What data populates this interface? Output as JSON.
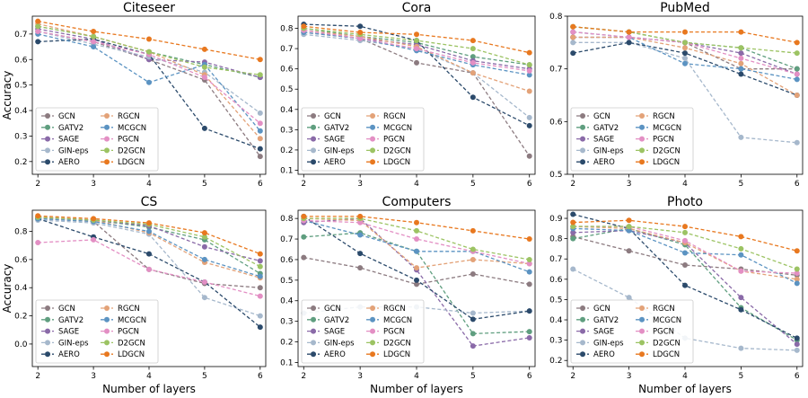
{
  "figure": {
    "xlabel": "Number of layers",
    "ylabel": "Accuracy"
  },
  "series_styles": [
    {
      "name": "GCN",
      "color": "#8c7b80"
    },
    {
      "name": "GATV2",
      "color": "#5f9e7f"
    },
    {
      "name": "SAGE",
      "color": "#8a6aa8"
    },
    {
      "name": "GIN-eps",
      "color": "#a6b8cc"
    },
    {
      "name": "AERO",
      "color": "#2b4a6b"
    },
    {
      "name": "RGCN",
      "color": "#e3a278"
    },
    {
      "name": "MCGCN",
      "color": "#5b93c2"
    },
    {
      "name": "PGCN",
      "color": "#e38fc4"
    },
    {
      "name": "D2GCN",
      "color": "#9cc363"
    },
    {
      "name": "LDGCN",
      "color": "#e8781f"
    }
  ],
  "chart_data": [
    {
      "type": "line",
      "title": "Citeseer",
      "x": [
        2,
        3,
        4,
        5,
        6
      ],
      "ylim": [
        0.15,
        0.77
      ],
      "yticks": [
        0.2,
        0.3,
        0.4,
        0.5,
        0.6,
        0.7
      ],
      "yticklabels": [
        "0.2",
        "0.3",
        "0.4",
        "0.5",
        "0.6",
        "0.7"
      ],
      "series": [
        {
          "name": "GCN",
          "values": [
            0.71,
            0.67,
            0.6,
            0.52,
            0.22
          ]
        },
        {
          "name": "GATV2",
          "values": [
            0.73,
            0.69,
            0.63,
            0.58,
            0.53
          ]
        },
        {
          "name": "SAGE",
          "values": [
            0.72,
            0.68,
            0.6,
            0.59,
            0.53
          ]
        },
        {
          "name": "GIN-eps",
          "values": [
            0.71,
            0.66,
            0.61,
            0.55,
            0.39
          ]
        },
        {
          "name": "AERO",
          "values": [
            0.67,
            0.68,
            0.62,
            0.33,
            0.25
          ]
        },
        {
          "name": "RGCN",
          "values": [
            0.74,
            0.69,
            0.63,
            0.54,
            0.29
          ]
        },
        {
          "name": "MCGCN",
          "values": [
            0.7,
            0.65,
            0.51,
            0.58,
            0.32
          ]
        },
        {
          "name": "PGCN",
          "values": [
            0.71,
            0.67,
            0.62,
            0.53,
            0.35
          ]
        },
        {
          "name": "D2GCN",
          "values": [
            0.73,
            0.69,
            0.63,
            0.57,
            0.54
          ]
        },
        {
          "name": "LDGCN",
          "values": [
            0.75,
            0.71,
            0.68,
            0.64,
            0.6
          ]
        }
      ],
      "xticklabels": [
        "2",
        "3",
        "4",
        "5",
        "6"
      ],
      "xlabel": "",
      "ylabel": "Accuracy"
    },
    {
      "type": "line",
      "title": "Cora",
      "x": [
        2,
        3,
        4,
        5,
        6
      ],
      "ylim": [
        0.08,
        0.86
      ],
      "yticks": [
        0.1,
        0.2,
        0.3,
        0.4,
        0.5,
        0.6,
        0.7,
        0.8
      ],
      "yticklabels": [
        "0.1",
        "0.2",
        "0.3",
        "0.4",
        "0.5",
        "0.6",
        "0.7",
        "0.8"
      ],
      "series": [
        {
          "name": "GCN",
          "values": [
            0.78,
            0.75,
            0.63,
            0.58,
            0.17
          ]
        },
        {
          "name": "GATV2",
          "values": [
            0.8,
            0.76,
            0.73,
            0.66,
            0.62
          ]
        },
        {
          "name": "SAGE",
          "values": [
            0.79,
            0.75,
            0.72,
            0.64,
            0.6
          ]
        },
        {
          "name": "GIN-eps",
          "values": [
            0.77,
            0.74,
            0.7,
            0.58,
            0.36
          ]
        },
        {
          "name": "AERO",
          "values": [
            0.82,
            0.81,
            0.74,
            0.46,
            0.32
          ]
        },
        {
          "name": "RGCN",
          "values": [
            0.79,
            0.76,
            0.71,
            0.58,
            0.49
          ]
        },
        {
          "name": "MCGCN",
          "values": [
            0.78,
            0.75,
            0.69,
            0.62,
            0.57
          ]
        },
        {
          "name": "PGCN",
          "values": [
            0.79,
            0.75,
            0.7,
            0.63,
            0.59
          ]
        },
        {
          "name": "D2GCN",
          "values": [
            0.8,
            0.77,
            0.74,
            0.7,
            0.62
          ]
        },
        {
          "name": "LDGCN",
          "values": [
            0.81,
            0.78,
            0.77,
            0.74,
            0.68
          ]
        }
      ],
      "xticklabels": [
        "2",
        "3",
        "4",
        "5",
        "6"
      ],
      "xlabel": "",
      "ylabel": ""
    },
    {
      "type": "line",
      "title": "PubMed",
      "x": [
        2,
        3,
        4,
        5,
        6
      ],
      "ylim": [
        0.5,
        0.8
      ],
      "yticks": [
        0.5,
        0.6,
        0.7,
        0.8
      ],
      "yticklabels": [
        "0.5",
        "0.6",
        "0.7",
        "0.8"
      ],
      "series": [
        {
          "name": "GCN",
          "values": [
            0.76,
            0.76,
            0.75,
            0.7,
            0.7
          ]
        },
        {
          "name": "GATV2",
          "values": [
            0.78,
            0.77,
            0.75,
            0.74,
            0.7
          ]
        },
        {
          "name": "SAGE",
          "values": [
            0.76,
            0.76,
            0.75,
            0.73,
            0.69
          ]
        },
        {
          "name": "GIN-eps",
          "values": [
            0.75,
            0.75,
            0.72,
            0.57,
            0.56
          ]
        },
        {
          "name": "AERO",
          "values": [
            0.73,
            0.75,
            0.73,
            0.69,
            0.65
          ]
        },
        {
          "name": "RGCN",
          "values": [
            0.76,
            0.76,
            0.74,
            0.71,
            0.65
          ]
        },
        {
          "name": "MCGCN",
          "values": [
            0.77,
            0.76,
            0.71,
            0.7,
            0.68
          ]
        },
        {
          "name": "PGCN",
          "values": [
            0.77,
            0.76,
            0.75,
            0.72,
            0.69
          ]
        },
        {
          "name": "D2GCN",
          "values": [
            0.78,
            0.77,
            0.75,
            0.74,
            0.73
          ]
        },
        {
          "name": "LDGCN",
          "values": [
            0.78,
            0.77,
            0.77,
            0.77,
            0.75
          ]
        }
      ],
      "xticklabels": [
        "2",
        "3",
        "4",
        "5",
        "6"
      ],
      "xlabel": "",
      "ylabel": ""
    },
    {
      "type": "line",
      "title": "CS",
      "x": [
        2,
        3,
        4,
        5,
        6
      ],
      "ylim": [
        -0.16,
        0.95
      ],
      "yticks": [
        0.0,
        0.2,
        0.4,
        0.6,
        0.8
      ],
      "yticklabels": [
        "0.0",
        "0.2",
        "0.4",
        "0.6",
        "0.8"
      ],
      "series": [
        {
          "name": "GCN",
          "values": [
            0.89,
            0.87,
            0.53,
            0.43,
            0.4
          ]
        },
        {
          "name": "GATV2",
          "values": [
            0.9,
            0.88,
            0.83,
            0.74,
            0.5
          ]
        },
        {
          "name": "SAGE",
          "values": [
            0.9,
            0.88,
            0.84,
            0.69,
            0.59
          ]
        },
        {
          "name": "GIN-eps",
          "values": [
            0.88,
            0.86,
            0.78,
            0.33,
            0.2
          ]
        },
        {
          "name": "AERO",
          "values": [
            0.89,
            0.76,
            0.64,
            0.44,
            0.12
          ]
        },
        {
          "name": "RGCN",
          "values": [
            0.9,
            0.88,
            0.79,
            0.58,
            0.47
          ]
        },
        {
          "name": "MCGCN",
          "values": [
            0.89,
            0.87,
            0.8,
            0.6,
            0.48
          ]
        },
        {
          "name": "PGCN",
          "values": [
            0.72,
            0.74,
            0.53,
            0.44,
            0.34
          ]
        },
        {
          "name": "D2GCN",
          "values": [
            0.9,
            0.88,
            0.85,
            0.76,
            0.55
          ]
        },
        {
          "name": "LDGCN",
          "values": [
            0.91,
            0.89,
            0.86,
            0.79,
            0.64
          ]
        }
      ],
      "xticklabels": [
        "2",
        "3",
        "4",
        "5",
        "6"
      ],
      "xlabel": "Number of layers",
      "ylabel": "Accuracy"
    },
    {
      "type": "line",
      "title": "Computers",
      "x": [
        2,
        3,
        4,
        5,
        6
      ],
      "ylim": [
        0.08,
        0.84
      ],
      "yticks": [
        0.1,
        0.2,
        0.3,
        0.4,
        0.5,
        0.6,
        0.7,
        0.8
      ],
      "yticklabels": [
        "0.1",
        "0.2",
        "0.3",
        "0.4",
        "0.5",
        "0.6",
        "0.7",
        "0.8"
      ],
      "series": [
        {
          "name": "GCN",
          "values": [
            0.61,
            0.56,
            0.48,
            0.53,
            0.48
          ]
        },
        {
          "name": "GATV2",
          "values": [
            0.71,
            0.73,
            0.64,
            0.24,
            0.25
          ]
        },
        {
          "name": "SAGE",
          "values": [
            0.78,
            0.8,
            0.55,
            0.18,
            0.22
          ]
        },
        {
          "name": "GIN-eps",
          "values": [
            0.34,
            0.37,
            0.37,
            0.34,
            0.35
          ]
        },
        {
          "name": "AERO",
          "values": [
            0.81,
            0.63,
            0.5,
            0.31,
            0.35
          ]
        },
        {
          "name": "RGCN",
          "values": [
            0.8,
            0.79,
            0.56,
            0.6,
            0.58
          ]
        },
        {
          "name": "MCGCN",
          "values": [
            0.79,
            0.72,
            0.64,
            0.64,
            0.54
          ]
        },
        {
          "name": "PGCN",
          "values": [
            0.79,
            0.78,
            0.7,
            0.64,
            0.58
          ]
        },
        {
          "name": "D2GCN",
          "values": [
            0.8,
            0.8,
            0.74,
            0.65,
            0.6
          ]
        },
        {
          "name": "LDGCN",
          "values": [
            0.81,
            0.81,
            0.78,
            0.74,
            0.7
          ]
        }
      ],
      "xticklabels": [
        "2",
        "3",
        "4",
        "5",
        "6"
      ],
      "xlabel": "Number of layers",
      "ylabel": ""
    },
    {
      "type": "line",
      "title": "Photo",
      "x": [
        2,
        3,
        4,
        5,
        6
      ],
      "ylim": [
        0.17,
        0.94
      ],
      "yticks": [
        0.2,
        0.3,
        0.4,
        0.5,
        0.6,
        0.7,
        0.8,
        0.9
      ],
      "yticklabels": [
        "0.2",
        "0.3",
        "0.4",
        "0.5",
        "0.6",
        "0.7",
        "0.8",
        "0.9"
      ],
      "series": [
        {
          "name": "GCN",
          "values": [
            0.81,
            0.74,
            0.67,
            0.65,
            0.62
          ]
        },
        {
          "name": "GATV2",
          "values": [
            0.8,
            0.85,
            0.77,
            0.46,
            0.3
          ]
        },
        {
          "name": "SAGE",
          "values": [
            0.83,
            0.84,
            0.78,
            0.51,
            0.28
          ]
        },
        {
          "name": "GIN-eps",
          "values": [
            0.65,
            0.51,
            0.31,
            0.26,
            0.25
          ]
        },
        {
          "name": "AERO",
          "values": [
            0.92,
            0.85,
            0.57,
            0.45,
            0.31
          ]
        },
        {
          "name": "RGCN",
          "values": [
            0.86,
            0.85,
            0.78,
            0.64,
            0.6
          ]
        },
        {
          "name": "MCGCN",
          "values": [
            0.85,
            0.84,
            0.73,
            0.72,
            0.58
          ]
        },
        {
          "name": "PGCN",
          "values": [
            0.86,
            0.86,
            0.79,
            0.64,
            0.63
          ]
        },
        {
          "name": "D2GCN",
          "values": [
            0.86,
            0.86,
            0.83,
            0.75,
            0.65
          ]
        },
        {
          "name": "LDGCN",
          "values": [
            0.88,
            0.89,
            0.86,
            0.81,
            0.74
          ]
        }
      ],
      "xticklabels": [
        "2",
        "3",
        "4",
        "5",
        "6"
      ],
      "xlabel": "Number of layers",
      "ylabel": ""
    }
  ]
}
